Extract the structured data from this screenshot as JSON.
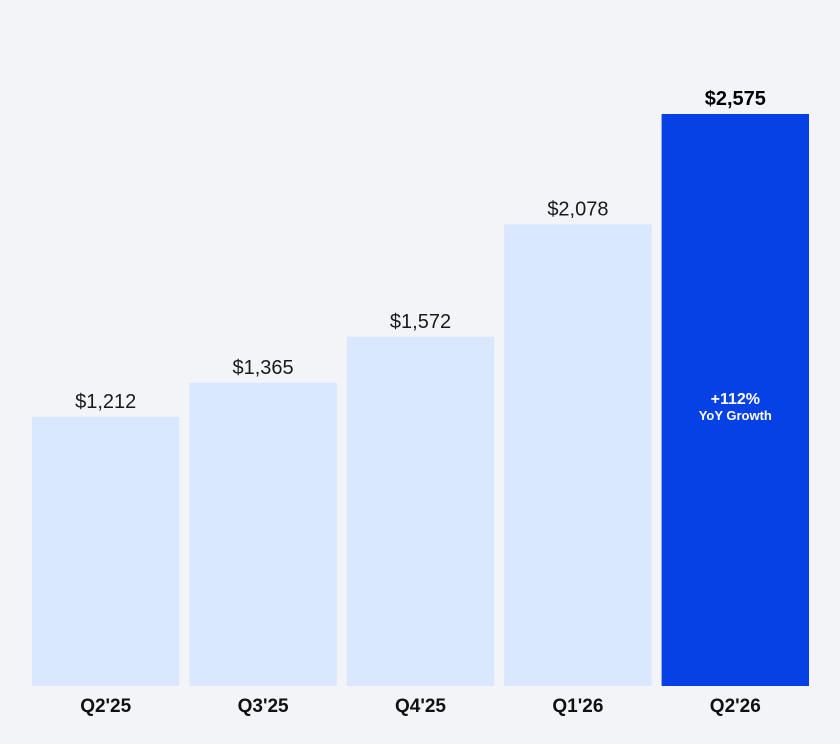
{
  "chart_data": {
    "type": "bar",
    "categories": [
      "Q2'25",
      "Q3'25",
      "Q4'25",
      "Q1'26",
      "Q2'26"
    ],
    "values": [
      1212,
      1365,
      1572,
      2078,
      2575
    ],
    "value_labels": [
      "$1,212",
      "$1,365",
      "$1,572",
      "$2,078",
      "$2,575"
    ],
    "highlight_index": 4,
    "annotation": {
      "main": "+112%",
      "sub": "YoY Growth"
    },
    "ylim": [
      0,
      2575
    ],
    "grid": false,
    "colors": {
      "bar": "#d9e8fe",
      "highlight_bar": "#0641e6",
      "background": "#f2f4f8"
    }
  }
}
